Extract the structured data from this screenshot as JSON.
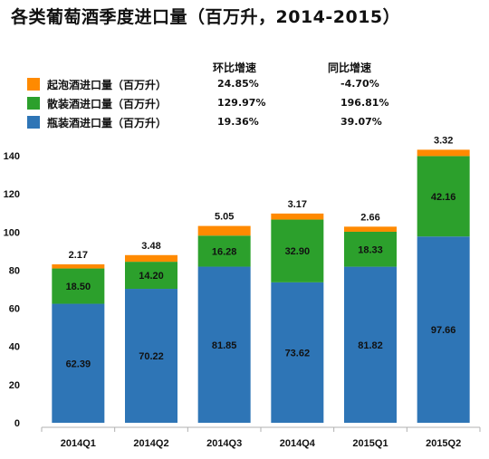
{
  "title": "各类葡萄酒季度进口量（百万升，2014-2015）",
  "legend": {
    "header_qoq": "环比增速",
    "header_yoy": "同比增速",
    "items": [
      {
        "name": "起泡酒进口量（百万升）",
        "color": "#FF8A00",
        "qoq": "24.85%",
        "yoy": "-4.70%"
      },
      {
        "name": "散装酒进口量（百万升）",
        "color": "#2CA02C",
        "qoq": "129.97%",
        "yoy": "196.81%"
      },
      {
        "name": "瓶装酒进口量（百万升）",
        "color": "#2E75B6",
        "qoq": "19.36%",
        "yoy": "39.07%"
      }
    ]
  },
  "chart_data": {
    "type": "bar",
    "stacked": true,
    "categories": [
      "2014Q1",
      "2014Q2",
      "2014Q3",
      "2014Q4",
      "2015Q1",
      "2015Q2"
    ],
    "series": [
      {
        "name": "瓶装酒进口量（百万升）",
        "color": "#2E75B6",
        "values": [
          62.39,
          70.22,
          81.85,
          73.62,
          81.82,
          97.66
        ]
      },
      {
        "name": "散装酒进口量（百万升）",
        "color": "#2CA02C",
        "values": [
          18.5,
          14.2,
          16.28,
          32.9,
          18.33,
          42.16
        ]
      },
      {
        "name": "起泡酒进口量（百万升）",
        "color": "#FF8A00",
        "values": [
          2.17,
          3.48,
          5.05,
          3.17,
          2.66,
          3.32
        ]
      }
    ],
    "labels": {
      "bottled": [
        "62.39",
        "70.22",
        "81.85",
        "73.62",
        "81.82",
        "97.66"
      ],
      "bulk": [
        "18.50",
        "14.20",
        "16.28",
        "32.90",
        "18.33",
        "42.16"
      ],
      "sparkling": [
        "2.17",
        "3.48",
        "5.05",
        "3.17",
        "2.66",
        "3.32"
      ]
    },
    "yticks": [
      "0",
      "20",
      "40",
      "60",
      "80",
      "100",
      "120",
      "140"
    ],
    "ylim": [
      0,
      140
    ],
    "xlabel": "",
    "ylabel": "",
    "grid": false,
    "legend_position": "top-left"
  }
}
